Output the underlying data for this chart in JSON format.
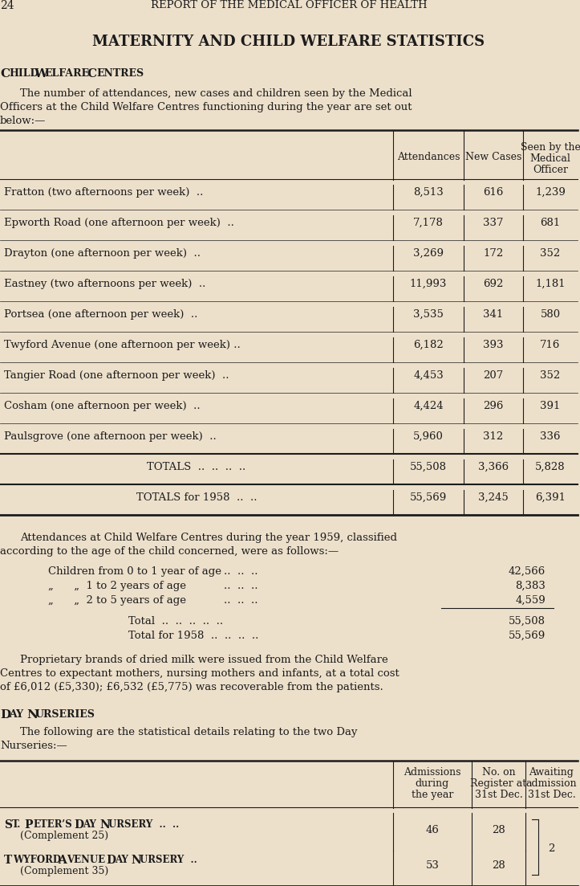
{
  "page_number": "24",
  "header": "REPORT OF THE MEDICAL OFFICER OF HEALTH",
  "main_title": "MATERNITY AND CHILD WELFARE STATISTICS",
  "section1_title": "Child Welfare Centres",
  "table1_col_headers": [
    "Attendances",
    "New Cases",
    "Seen by the\nMedical\nOfficer"
  ],
  "table1_rows": [
    [
      "Fratton (two afternoons per week)  ..",
      "8,513",
      "616",
      "1,239"
    ],
    [
      "Epworth Road (one afternoon per week)  ..",
      "7,178",
      "337",
      "681"
    ],
    [
      "Drayton (one afternoon per week)  ..",
      "3,269",
      "172",
      "352"
    ],
    [
      "Eastney (two afternoons per week)  ..",
      "11,993",
      "692",
      "1,181"
    ],
    [
      "Portsea (one afternoon per week)  ..",
      "3,535",
      "341",
      "580"
    ],
    [
      "Twyford Avenue (one afternoon per week) ..",
      "6,182",
      "393",
      "716"
    ],
    [
      "Tangier Road (one afternoon per week)  ..",
      "4,453",
      "207",
      "352"
    ],
    [
      "Cosham (one afternoon per week)  ..",
      "4,424",
      "296",
      "391"
    ],
    [
      "Paulsgrove (one afternoon per week)  ..",
      "5,960",
      "312",
      "336"
    ]
  ],
  "table1_totals": [
    "TOTALS  ..  ..  ..  ..",
    "55,508",
    "3,366",
    "5,828"
  ],
  "table1_totals1958": [
    "TOTALS for 1958  ..  ..",
    "55,569",
    "3,245",
    "6,391"
  ],
  "age_rows": [
    [
      "Children from 0 to 1 year of age",
      "..  ..  ..",
      "42,566"
    ],
    [
      "„      „  1 to 2 years of age",
      "..  ..  ..",
      "8,383"
    ],
    [
      "„      „  2 to 5 years of age",
      "..  ..  ..",
      "4,559"
    ]
  ],
  "total_val": "55,508",
  "total_1958_val": "55,569",
  "para_milk_lines": [
    "Proprietary brands of dried milk were issued from the Child Welfare",
    "Centres to expectant mothers, nursing mothers and infants, at a total cost",
    "of £6,012 (£5,330); £6,532 (£5,775) was recoverable from the patients."
  ],
  "section3_title": "Day Nurseries",
  "table2_col_headers": [
    "Admissions\nduring\nthe year",
    "No. on\nRegister at\n31st Dec.",
    "Awaiting\nadmission\n31st Dec."
  ],
  "bg_color": "#ede0cb",
  "text_color": "#1c1c1c",
  "line_color": "#1c1c1c"
}
